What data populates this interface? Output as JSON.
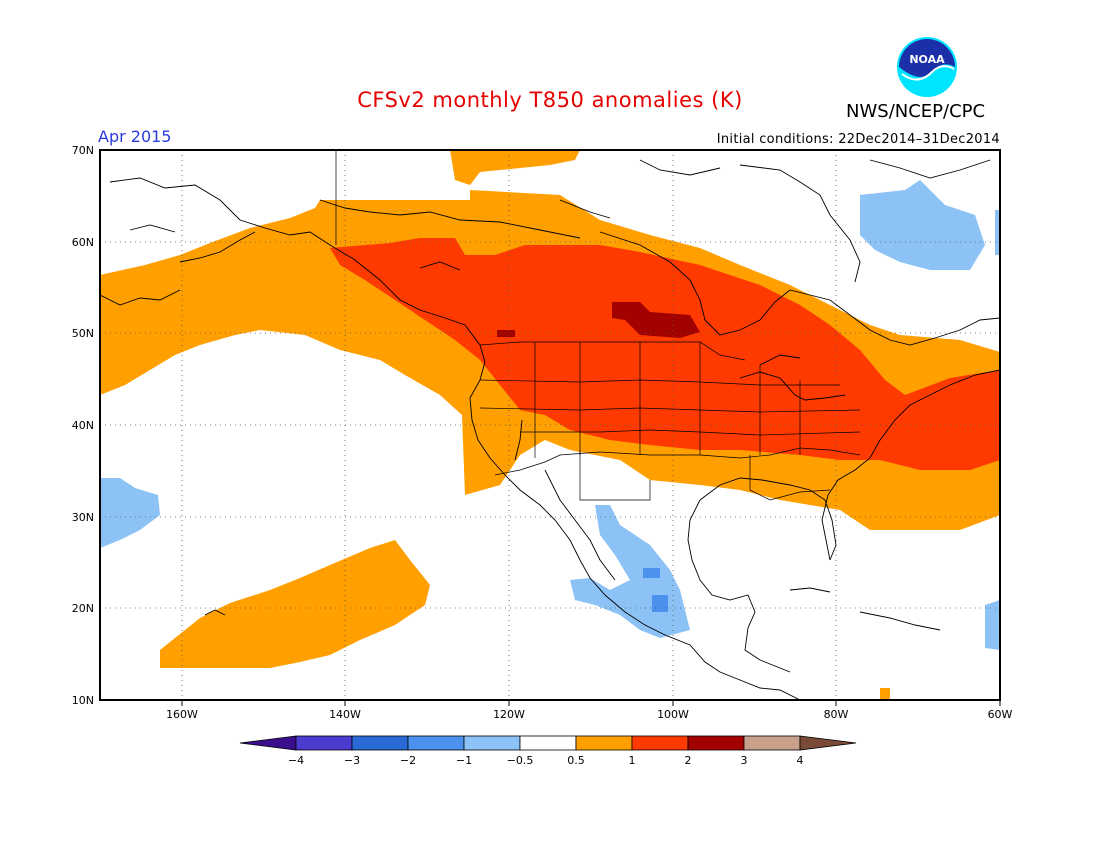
{
  "header": {
    "title": "CFSv2 monthly T850 anomalies (K)",
    "month": "Apr 2015",
    "organization": "NWS/NCEP/CPC",
    "initial_conditions": "Initial conditions: 22Dec2014–31Dec2014",
    "logo_text": "NOAA"
  },
  "map": {
    "lat_labels": [
      "70N",
      "60N",
      "50N",
      "40N",
      "30N",
      "20N",
      "10N"
    ],
    "lon_labels": [
      "160W",
      "140W",
      "120W",
      "100W",
      "80W",
      "60W"
    ]
  },
  "colorbar": {
    "labels": [
      "−4",
      "−3",
      "−2",
      "−1",
      "−0.5",
      "0.5",
      "1",
      "2",
      "3",
      "4"
    ],
    "colors": [
      "#3a0e8c",
      "#4b3ccf",
      "#2a6ad6",
      "#4a92ee",
      "#8cc2f5",
      "#ffffff",
      "#ff9f00",
      "#ff3a00",
      "#a30000",
      "#c9a08c",
      "#7a4a36"
    ]
  },
  "colors": {
    "light_blue": "#8cc2f5",
    "mid_blue": "#4a92ee",
    "orange": "#ff9f00",
    "red": "#ff3a00",
    "dark_red": "#a30000",
    "title_red": "#e60000",
    "month_blue": "#2b3be0"
  }
}
